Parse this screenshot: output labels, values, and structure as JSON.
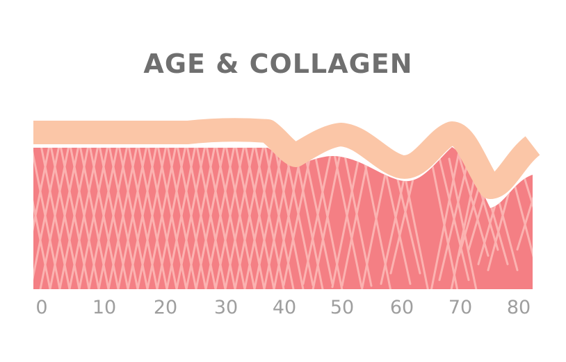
{
  "title": "AGE & COLLAGEN",
  "axis": {
    "ticks": [
      "0",
      "10",
      "20",
      "30",
      "40",
      "50",
      "60",
      "70",
      "80"
    ]
  },
  "colors": {
    "title": "#6f6f6f",
    "dermis": "#f47f84",
    "skin_surface": "#fbc6a7",
    "collagen_fibers": "#fbb3b1",
    "ticks": "#9e9e9e"
  }
}
